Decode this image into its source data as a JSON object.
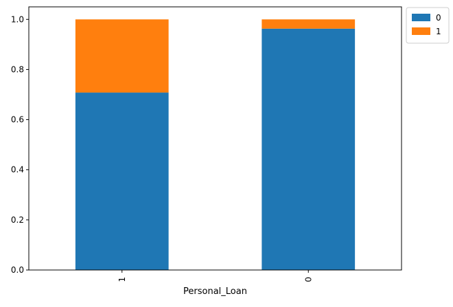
{
  "chart_data": {
    "type": "bar",
    "stacked": true,
    "categories": [
      "1",
      "0"
    ],
    "series": [
      {
        "name": "0",
        "values": [
          0.708,
          0.963
        ],
        "color": "#1f77b4"
      },
      {
        "name": "1",
        "values": [
          0.292,
          0.037
        ],
        "color": "#ff7f0e"
      }
    ],
    "title": "",
    "xlabel": "Personal_Loan",
    "ylabel": "",
    "ylim": [
      0,
      1.05
    ],
    "yticks": [
      0.0,
      0.2,
      0.4,
      0.6,
      0.8,
      1.0
    ],
    "ytick_labels": [
      "0.0",
      "0.2",
      "0.4",
      "0.6",
      "0.8",
      "1.0"
    ],
    "xtick_rotation": 90,
    "grid": false,
    "legend_position": "outside-top-right"
  }
}
